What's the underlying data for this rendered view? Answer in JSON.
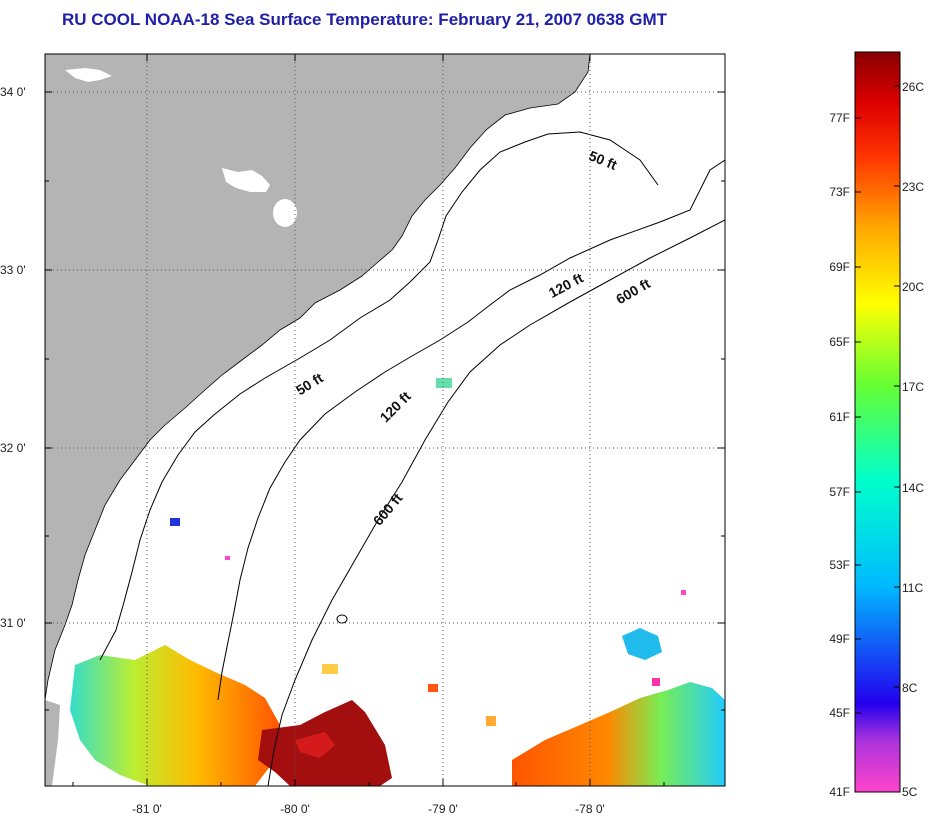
{
  "title": "RU COOL  NOAA-18  Sea Surface Temperature:  February 21, 2007 0638 GMT",
  "map": {
    "lat_ticks": [
      "34 0'",
      "33 0'",
      "32 0'",
      "31 0'"
    ],
    "lon_ticks": [
      "-81 0'",
      "-80 0'",
      "-79 0'",
      "-78 0'"
    ],
    "contour_labels": [
      "50 ft",
      "120 ft",
      "600 ft",
      "50 ft",
      "120 ft",
      "600 ft"
    ],
    "colors": {
      "land": "#b4b4b4",
      "grid": "#555555"
    }
  },
  "colorbar": {
    "fahrenheit": [
      "77F",
      "73F",
      "69F",
      "65F",
      "61F",
      "57F",
      "53F",
      "49F",
      "45F",
      "41F"
    ],
    "celsius": [
      "26C",
      "23C",
      "20C",
      "17C",
      "14C",
      "11C",
      "8C",
      "5C"
    ]
  }
}
